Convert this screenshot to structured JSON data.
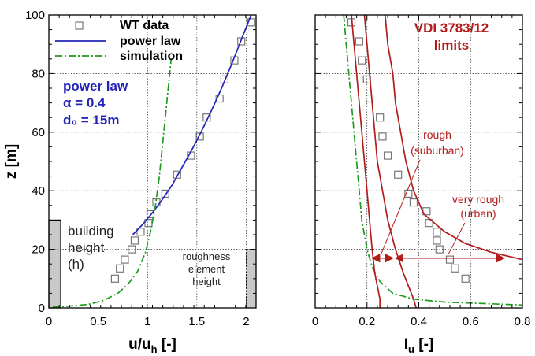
{
  "chart_data": [
    {
      "type": "line",
      "xlabel": "u/u",
      "xlabel_sub": "h",
      "xlabel_unit": " [-]",
      "ylabel": "z [m]",
      "xlim": [
        0,
        2.1
      ],
      "ylim": [
        0,
        100
      ],
      "xticks": [
        0,
        0.5,
        1,
        1.5,
        2
      ],
      "xtick_labels": [
        "0",
        "0.5",
        "1",
        "1.5",
        "2"
      ],
      "yticks": [
        0,
        20,
        40,
        60,
        80,
        100
      ],
      "ytick_labels": [
        "0",
        "20",
        "40",
        "60",
        "80",
        "100"
      ],
      "grid": true,
      "legend_position": "top-left",
      "legend": [
        {
          "label": "WT data",
          "style": "marker",
          "color": "#777777"
        },
        {
          "label": "power law",
          "style": "solid",
          "color": "#2424b8"
        },
        {
          "label": "simulation",
          "style": "dashdot",
          "color": "#1e9a1e"
        }
      ],
      "series": [
        {
          "name": "WT data",
          "kind": "markers",
          "color": "#777777",
          "points": [
            [
              0.67,
              10
            ],
            [
              0.72,
              13.5
            ],
            [
              0.77,
              16.5
            ],
            [
              0.84,
              20
            ],
            [
              0.87,
              23
            ],
            [
              0.93,
              26
            ],
            [
              1.01,
              29
            ],
            [
              1.03,
              32
            ],
            [
              1.09,
              36
            ],
            [
              1.18,
              39
            ],
            [
              1.3,
              45.5
            ],
            [
              1.44,
              52
            ],
            [
              1.53,
              58.5
            ],
            [
              1.6,
              65
            ],
            [
              1.73,
              71.5
            ],
            [
              1.78,
              78
            ],
            [
              1.88,
              84.5
            ],
            [
              1.95,
              91
            ],
            [
              2.05,
              97.5
            ]
          ]
        },
        {
          "name": "power law",
          "kind": "line",
          "color": "#2424b8",
          "dash": "solid",
          "points": [
            [
              0.85,
              25
            ],
            [
              0.95,
              28.5
            ],
            [
              1.05,
              32.5
            ],
            [
              1.15,
              37
            ],
            [
              1.25,
              42
            ],
            [
              1.35,
              48
            ],
            [
              1.45,
              54
            ],
            [
              1.55,
              60.5
            ],
            [
              1.65,
              67.5
            ],
            [
              1.75,
              75
            ],
            [
              1.85,
              83
            ],
            [
              1.95,
              91.5
            ],
            [
              2.05,
              100
            ]
          ]
        },
        {
          "name": "simulation",
          "kind": "line",
          "color": "#1e9a1e",
          "dash": "dashdot",
          "points": [
            [
              0.04,
              0.3
            ],
            [
              0.2,
              0.6
            ],
            [
              0.4,
              1.2
            ],
            [
              0.55,
              2.5
            ],
            [
              0.7,
              5
            ],
            [
              0.8,
              8
            ],
            [
              0.9,
              12.5
            ],
            [
              0.98,
              19
            ],
            [
              1.03,
              26
            ],
            [
              1.08,
              35
            ],
            [
              1.12,
              45
            ],
            [
              1.15,
              55
            ],
            [
              1.18,
              65
            ],
            [
              1.21,
              75
            ],
            [
              1.24,
              85
            ]
          ]
        }
      ],
      "annotations": [
        {
          "text_lines": [
            "power law",
            "  α = 0.4",
            "d₀ = 15m"
          ],
          "color": "#2424b8"
        },
        {
          "text_lines": [
            "building",
            "height",
            "(h)"
          ],
          "color": "#222222"
        },
        {
          "text_lines": [
            "roughness",
            "element",
            "height"
          ],
          "color": "#222222"
        }
      ],
      "shaded_bars": [
        {
          "label": "building height",
          "x": [
            0,
            0.12
          ],
          "y": [
            0,
            30
          ]
        },
        {
          "label": "roughness element height",
          "x": [
            2.0,
            2.1
          ],
          "y": [
            0,
            20
          ]
        }
      ]
    },
    {
      "type": "line",
      "xlabel": "I",
      "xlabel_sub": "u",
      "xlabel_unit": "  [-]",
      "ylabel": "",
      "xlim": [
        0,
        0.8
      ],
      "ylim": [
        0,
        100
      ],
      "xticks": [
        0,
        0.2,
        0.4,
        0.6,
        0.8
      ],
      "xtick_labels": [
        "0",
        "0.2",
        "0.4",
        "0.6",
        "0.8"
      ],
      "yticks": [
        0,
        20,
        40,
        60,
        80,
        100
      ],
      "grid": true,
      "title": "VDI 3783/12\nlimits",
      "title_color": "#b31b1b",
      "series": [
        {
          "name": "WT data",
          "kind": "markers",
          "color": "#777777",
          "points": [
            [
              0.14,
              97.5
            ],
            [
              0.17,
              91
            ],
            [
              0.18,
              84.5
            ],
            [
              0.2,
              78
            ],
            [
              0.21,
              71.5
            ],
            [
              0.25,
              65
            ],
            [
              0.26,
              58.5
            ],
            [
              0.28,
              52
            ],
            [
              0.32,
              45.5
            ],
            [
              0.36,
              39
            ],
            [
              0.38,
              36
            ],
            [
              0.43,
              33
            ],
            [
              0.44,
              29
            ],
            [
              0.47,
              26
            ],
            [
              0.47,
              23
            ],
            [
              0.48,
              20
            ],
            [
              0.52,
              16.5
            ],
            [
              0.54,
              13.5
            ],
            [
              0.58,
              10
            ]
          ]
        },
        {
          "name": "simulation",
          "kind": "line",
          "color": "#1e9a1e",
          "dash": "dashdot",
          "points": [
            [
              0.11,
              100
            ],
            [
              0.12,
              90
            ],
            [
              0.13,
              80
            ],
            [
              0.14,
              70
            ],
            [
              0.15,
              60
            ],
            [
              0.16,
              50
            ],
            [
              0.17,
              40
            ],
            [
              0.18,
              30
            ],
            [
              0.2,
              20
            ],
            [
              0.22,
              14
            ],
            [
              0.25,
              9
            ],
            [
              0.3,
              5
            ],
            [
              0.38,
              3
            ],
            [
              0.5,
              2
            ],
            [
              0.65,
              1.5
            ],
            [
              0.8,
              1
            ]
          ]
        },
        {
          "name": "limit left",
          "kind": "line",
          "color": "#b31b1b",
          "dash": "solid",
          "points": [
            [
              0.14,
              100
            ],
            [
              0.15,
              90
            ],
            [
              0.16,
              80
            ],
            [
              0.17,
              70
            ],
            [
              0.18,
              60
            ],
            [
              0.19,
              50
            ],
            [
              0.2,
              40
            ],
            [
              0.21,
              30
            ],
            [
              0.22,
              20
            ],
            [
              0.23,
              12
            ],
            [
              0.25,
              3
            ],
            [
              0.25,
              0
            ]
          ]
        },
        {
          "name": "limit middle",
          "kind": "line",
          "color": "#b31b1b",
          "dash": "solid",
          "points": [
            [
              0.19,
              100
            ],
            [
              0.2,
              90
            ],
            [
              0.21,
              80
            ],
            [
              0.22,
              70
            ],
            [
              0.23,
              60
            ],
            [
              0.24,
              50
            ],
            [
              0.26,
              40
            ],
            [
              0.28,
              30
            ],
            [
              0.31,
              20
            ],
            [
              0.34,
              12
            ],
            [
              0.38,
              3
            ],
            [
              0.39,
              0
            ]
          ]
        },
        {
          "name": "limit right",
          "kind": "line",
          "color": "#b31b1b",
          "dash": "solid",
          "points": [
            [
              0.27,
              100
            ],
            [
              0.28,
              90
            ],
            [
              0.3,
              80
            ],
            [
              0.31,
              70
            ],
            [
              0.33,
              60
            ],
            [
              0.35,
              50
            ],
            [
              0.38,
              40
            ],
            [
              0.42,
              32
            ],
            [
              0.5,
              26
            ],
            [
              0.58,
              22
            ],
            [
              0.68,
              19
            ],
            [
              0.8,
              16.5
            ]
          ]
        }
      ],
      "annotations": [
        {
          "text_lines": [
            "rough",
            "(suburban)"
          ],
          "color": "#b31b1b"
        },
        {
          "text_lines": [
            "very rough",
            "(urban)"
          ],
          "color": "#b31b1b"
        }
      ],
      "range_arrows": [
        {
          "label": "rough (suburban)",
          "x": [
            0.22,
            0.31
          ],
          "y": 17
        },
        {
          "label": "very rough (urban)",
          "x": [
            0.31,
            0.73
          ],
          "y": 17
        }
      ]
    }
  ]
}
